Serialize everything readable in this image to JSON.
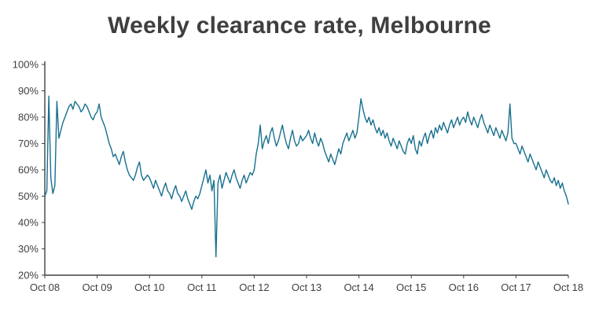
{
  "title": "Weekly clearance rate, Melbourne",
  "chart_data": {
    "type": "line",
    "title": "Weekly clearance rate, Melbourne",
    "xlabel": "",
    "ylabel": "",
    "ylim": [
      20,
      100
    ],
    "y_ticks": [
      "20%",
      "30%",
      "40%",
      "50%",
      "60%",
      "70%",
      "80%",
      "90%",
      "100%"
    ],
    "x_ticks": [
      "Oct 08",
      "Oct 09",
      "Oct 10",
      "Oct 11",
      "Oct 12",
      "Oct 13",
      "Oct 14",
      "Oct 15",
      "Oct 16",
      "Oct 17",
      "Oct 18"
    ],
    "grid": false,
    "legend": "none",
    "line_color": "#17708f",
    "axis_color": "#404040",
    "series": [
      {
        "name": "Weekly clearance rate",
        "values": [
          50,
          52,
          88,
          57,
          51,
          54,
          86,
          72,
          75,
          78,
          80,
          82,
          84,
          85,
          83,
          86,
          85,
          84,
          82,
          83,
          85,
          84,
          82,
          80,
          79,
          81,
          82,
          85,
          80,
          78,
          76,
          73,
          70,
          68,
          65,
          66,
          64,
          62,
          65,
          67,
          63,
          60,
          58,
          57,
          56,
          58,
          61,
          63,
          58,
          56,
          57,
          58,
          57,
          55,
          53,
          56,
          54,
          52,
          50,
          53,
          55,
          52,
          51,
          49,
          52,
          54,
          51,
          50,
          48,
          50,
          52,
          49,
          47,
          45,
          48,
          50,
          49,
          51,
          54,
          57,
          60,
          55,
          58,
          52,
          56,
          27,
          55,
          58,
          53,
          56,
          59,
          57,
          55,
          58,
          60,
          57,
          55,
          53,
          56,
          58,
          55,
          57,
          59,
          58,
          60,
          66,
          70,
          77,
          68,
          71,
          73,
          70,
          74,
          76,
          72,
          69,
          71,
          74,
          77,
          73,
          70,
          68,
          72,
          75,
          71,
          69,
          70,
          73,
          71,
          72,
          73,
          75,
          72,
          70,
          74,
          71,
          69,
          72,
          70,
          67,
          65,
          63,
          66,
          64,
          62,
          65,
          68,
          66,
          70,
          72,
          74,
          71,
          73,
          75,
          72,
          74,
          80,
          87,
          83,
          80,
          78,
          80,
          77,
          79,
          76,
          74,
          76,
          73,
          75,
          72,
          74,
          71,
          69,
          72,
          70,
          68,
          71,
          69,
          67,
          66,
          70,
          72,
          70,
          73,
          68,
          66,
          71,
          69,
          72,
          74,
          70,
          73,
          75,
          72,
          76,
          74,
          77,
          75,
          78,
          76,
          74,
          77,
          79,
          76,
          78,
          80,
          77,
          79,
          80,
          78,
          82,
          79,
          77,
          80,
          78,
          76,
          79,
          81,
          78,
          76,
          74,
          77,
          75,
          73,
          76,
          74,
          72,
          75,
          73,
          71,
          74,
          85,
          72,
          70,
          70,
          68,
          66,
          69,
          67,
          65,
          63,
          66,
          64,
          62,
          60,
          63,
          61,
          59,
          57,
          60,
          58,
          56,
          55,
          57,
          54,
          56,
          53,
          55,
          52,
          50,
          47
        ]
      }
    ]
  }
}
